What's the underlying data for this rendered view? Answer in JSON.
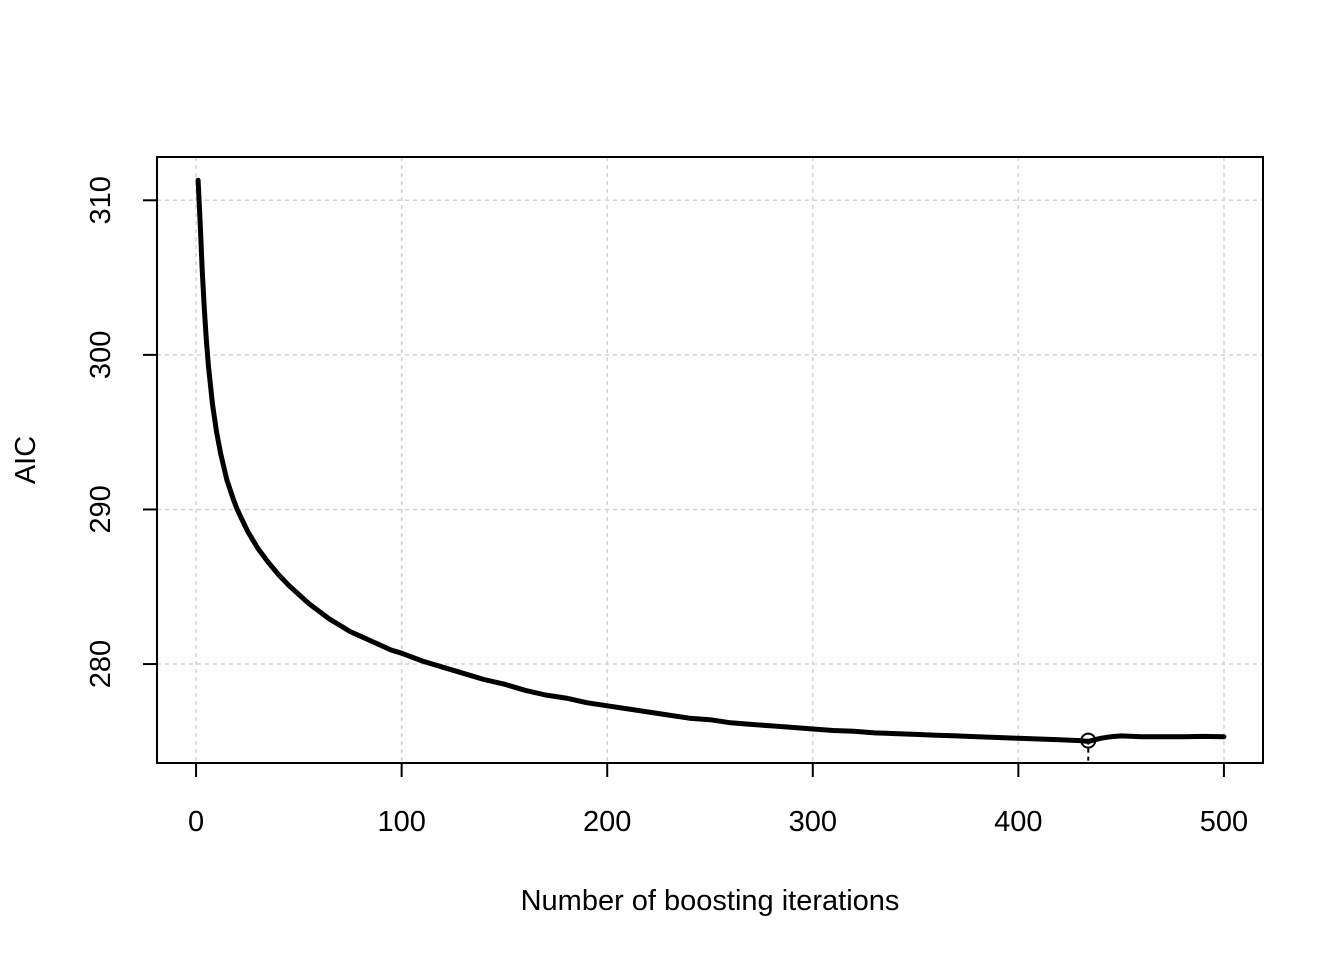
{
  "chart_data": {
    "type": "line",
    "title": "",
    "xlabel": "Number of boosting iterations",
    "ylabel": "AIC",
    "xlim": [
      -19,
      519
    ],
    "ylim": [
      273.6,
      312.8
    ],
    "xticks": [
      0,
      100,
      200,
      300,
      400,
      500
    ],
    "yticks": [
      280,
      290,
      300,
      310
    ],
    "grid": true,
    "series": [
      {
        "x": [
          1,
          2,
          3,
          4,
          5,
          6,
          8,
          10,
          12,
          15,
          18,
          20,
          25,
          30,
          35,
          40,
          45,
          50,
          55,
          60,
          65,
          70,
          75,
          80,
          85,
          90,
          95,
          100,
          110,
          120,
          130,
          140,
          150,
          160,
          170,
          180,
          190,
          200,
          210,
          220,
          230,
          240,
          250,
          260,
          270,
          280,
          290,
          300,
          310,
          320,
          330,
          340,
          350,
          360,
          370,
          380,
          390,
          400,
          410,
          420,
          430,
          434,
          440,
          445,
          450,
          460,
          470,
          480,
          490,
          500
        ],
        "y": [
          311.3,
          308.5,
          305.5,
          303.0,
          301.0,
          299.3,
          296.8,
          295.0,
          293.6,
          291.9,
          290.7,
          290.0,
          288.6,
          287.5,
          286.6,
          285.8,
          285.1,
          284.5,
          283.9,
          283.4,
          282.9,
          282.5,
          282.1,
          281.8,
          281.5,
          281.2,
          280.9,
          280.7,
          280.2,
          279.8,
          279.4,
          279.0,
          278.7,
          278.3,
          278.0,
          277.8,
          277.5,
          277.3,
          277.1,
          276.9,
          276.7,
          276.5,
          276.4,
          276.2,
          276.1,
          276.0,
          275.9,
          275.8,
          275.7,
          275.65,
          275.55,
          275.5,
          275.45,
          275.4,
          275.35,
          275.3,
          275.25,
          275.2,
          275.15,
          275.1,
          275.05,
          275.0,
          275.2,
          275.3,
          275.35,
          275.3,
          275.3,
          275.3,
          275.32,
          275.3
        ]
      }
    ],
    "optimum": {
      "x": 434,
      "y": 275.05
    }
  }
}
